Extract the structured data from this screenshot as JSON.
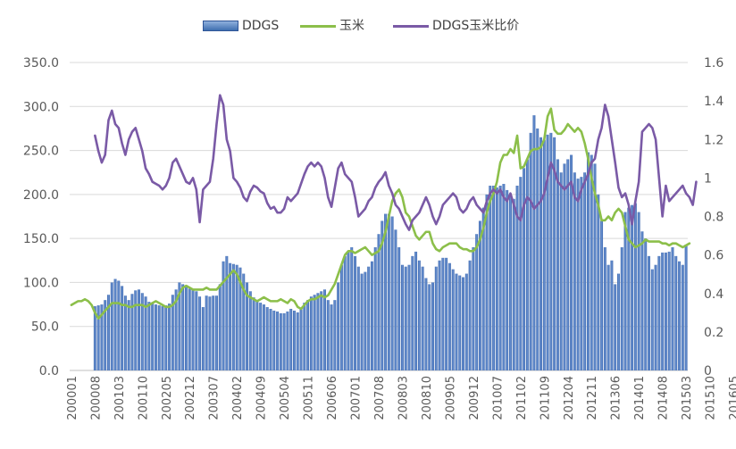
{
  "chart_data": {
    "type": "bar+line",
    "title": "",
    "xlabel": "",
    "ylabel": "",
    "y_left_lim": [
      0,
      350
    ],
    "y_right_lim": [
      0,
      1.6
    ],
    "y_left_ticks": [
      "0.0",
      "50.0",
      "100.0",
      "150.0",
      "200.0",
      "250.0",
      "300.0",
      "350.0"
    ],
    "y_right_ticks": [
      "0",
      "0.2",
      "0.4",
      "0.6",
      "0.8",
      "1",
      "1.2",
      "1.4",
      "1.6"
    ],
    "x_tick_labels": [
      "200001",
      "200008",
      "200103",
      "200110",
      "200205",
      "200212",
      "200307",
      "200402",
      "200409",
      "200504",
      "200511",
      "200606",
      "200701",
      "200708",
      "200803",
      "200810",
      "200905",
      "200912",
      "201007",
      "201102",
      "201109",
      "201204",
      "201211",
      "201306",
      "201401",
      "201408",
      "201503",
      "201510",
      "201605"
    ],
    "grid": "horizontal",
    "legend_position": "top",
    "colors": {
      "ddgs": "#4472c4",
      "corn": "#8cbf4a",
      "ratio": "#7a5aa6"
    },
    "series": [
      {
        "name": "DDGS",
        "type": "bar",
        "axis": "left",
        "values": [
          null,
          null,
          null,
          null,
          null,
          null,
          null,
          73,
          74,
          75,
          80,
          86,
          100,
          104,
          102,
          96,
          85,
          80,
          87,
          91,
          92,
          88,
          84,
          78,
          76,
          75,
          74,
          73,
          74,
          76,
          86,
          92,
          100,
          98,
          95,
          93,
          92,
          90,
          84,
          72,
          85,
          84,
          85,
          85,
          98,
          124,
          130,
          122,
          121,
          120,
          117,
          110,
          100,
          90,
          83,
          80,
          77,
          75,
          72,
          70,
          68,
          67,
          65,
          65,
          67,
          70,
          68,
          66,
          70,
          77,
          80,
          84,
          86,
          88,
          90,
          92,
          80,
          75,
          80,
          100,
          120,
          130,
          136,
          140,
          130,
          118,
          110,
          112,
          118,
          124,
          140,
          155,
          170,
          178,
          178,
          175,
          160,
          140,
          120,
          118,
          120,
          130,
          135,
          125,
          118,
          105,
          98,
          100,
          118,
          125,
          128,
          128,
          122,
          115,
          110,
          108,
          106,
          110,
          125,
          140,
          155,
          170,
          185,
          200,
          210,
          210,
          208,
          210,
          212,
          205,
          200,
          195,
          210,
          220,
          230,
          240,
          270,
          290,
          275,
          265,
          262,
          268,
          270,
          265,
          240,
          225,
          235,
          240,
          245,
          225,
          218,
          220,
          225,
          248,
          245,
          235,
          200,
          170,
          140,
          120,
          125,
          98,
          110,
          140,
          180,
          185,
          188,
          190,
          180,
          158,
          150,
          130,
          115,
          120,
          130,
          134,
          134,
          135,
          140,
          130,
          124,
          120,
          143
        ]
      },
      {
        "name": "玉米",
        "type": "line",
        "axis": "right",
        "values": [
          0.34,
          0.35,
          0.36,
          0.36,
          0.37,
          0.36,
          0.34,
          0.3,
          0.27,
          0.29,
          0.31,
          0.33,
          0.35,
          0.35,
          0.35,
          0.34,
          0.34,
          0.33,
          0.33,
          0.34,
          0.34,
          0.34,
          0.33,
          0.34,
          0.35,
          0.36,
          0.35,
          0.34,
          0.33,
          0.33,
          0.34,
          0.36,
          0.4,
          0.43,
          0.44,
          0.43,
          0.42,
          0.42,
          0.42,
          0.42,
          0.43,
          0.42,
          0.42,
          0.42,
          0.44,
          0.46,
          0.48,
          0.5,
          0.52,
          0.5,
          0.46,
          0.42,
          0.39,
          0.38,
          0.37,
          0.36,
          0.37,
          0.38,
          0.37,
          0.36,
          0.36,
          0.36,
          0.37,
          0.36,
          0.35,
          0.37,
          0.36,
          0.33,
          0.32,
          0.34,
          0.36,
          0.37,
          0.37,
          0.38,
          0.39,
          0.38,
          0.39,
          0.42,
          0.45,
          0.5,
          0.55,
          0.6,
          0.62,
          0.62,
          0.61,
          0.62,
          0.63,
          0.64,
          0.62,
          0.6,
          0.61,
          0.62,
          0.66,
          0.72,
          0.8,
          0.88,
          0.92,
          0.94,
          0.9,
          0.82,
          0.8,
          0.75,
          0.7,
          0.68,
          0.7,
          0.72,
          0.72,
          0.66,
          0.63,
          0.62,
          0.64,
          0.65,
          0.66,
          0.66,
          0.66,
          0.64,
          0.63,
          0.63,
          0.62,
          0.62,
          0.64,
          0.68,
          0.74,
          0.82,
          0.88,
          0.92,
          0.98,
          1.08,
          1.12,
          1.12,
          1.15,
          1.13,
          1.22,
          1.05,
          1.06,
          1.1,
          1.14,
          1.15,
          1.15,
          1.16,
          1.2,
          1.32,
          1.36,
          1.25,
          1.23,
          1.23,
          1.25,
          1.28,
          1.26,
          1.24,
          1.26,
          1.24,
          1.18,
          1.1,
          1.0,
          0.92,
          0.86,
          0.78,
          0.78,
          0.8,
          0.78,
          0.82,
          0.84,
          0.82,
          0.75,
          0.68,
          0.66,
          0.64,
          0.65,
          0.66,
          0.68,
          0.67,
          0.67,
          0.67,
          0.67,
          0.66,
          0.66,
          0.65,
          0.66,
          0.66,
          0.65,
          0.64,
          0.65,
          0.66
        ]
      },
      {
        "name": "DDGS玉米比价",
        "type": "line",
        "axis": "right",
        "values": [
          null,
          null,
          null,
          null,
          null,
          null,
          null,
          1.22,
          1.14,
          1.08,
          1.12,
          1.3,
          1.35,
          1.28,
          1.26,
          1.18,
          1.12,
          1.2,
          1.24,
          1.26,
          1.2,
          1.14,
          1.05,
          1.02,
          0.98,
          0.97,
          0.96,
          0.94,
          0.96,
          1.0,
          1.08,
          1.1,
          1.06,
          1.02,
          0.98,
          0.97,
          1.0,
          0.94,
          0.77,
          0.94,
          0.96,
          0.98,
          1.1,
          1.28,
          1.43,
          1.38,
          1.2,
          1.14,
          1.0,
          0.98,
          0.95,
          0.9,
          0.88,
          0.93,
          0.96,
          0.95,
          0.93,
          0.92,
          0.87,
          0.84,
          0.85,
          0.82,
          0.82,
          0.84,
          0.9,
          0.88,
          0.9,
          0.92,
          0.97,
          1.02,
          1.06,
          1.08,
          1.06,
          1.08,
          1.06,
          1.0,
          0.9,
          0.85,
          0.95,
          1.05,
          1.08,
          1.02,
          1.0,
          0.98,
          0.9,
          0.8,
          0.82,
          0.84,
          0.88,
          0.9,
          0.95,
          0.98,
          1.0,
          1.03,
          0.96,
          0.92,
          0.86,
          0.84,
          0.8,
          0.76,
          0.73,
          0.78,
          0.8,
          0.82,
          0.86,
          0.9,
          0.86,
          0.8,
          0.76,
          0.8,
          0.86,
          0.88,
          0.9,
          0.92,
          0.9,
          0.84,
          0.82,
          0.84,
          0.88,
          0.9,
          0.86,
          0.84,
          0.82,
          0.88,
          0.92,
          0.94,
          0.92,
          0.94,
          0.9,
          0.88,
          0.92,
          0.86,
          0.8,
          0.78,
          0.86,
          0.9,
          0.88,
          0.84,
          0.86,
          0.88,
          0.92,
          1.0,
          1.08,
          1.04,
          0.98,
          0.96,
          0.94,
          0.96,
          0.98,
          0.9,
          0.88,
          0.94,
          0.98,
          1.02,
          1.08,
          1.1,
          1.2,
          1.26,
          1.38,
          1.32,
          1.2,
          1.08,
          0.95,
          0.9,
          0.92,
          0.86,
          0.76,
          0.88,
          0.98,
          1.24,
          1.26,
          1.28,
          1.26,
          1.2,
          1.0,
          0.8,
          0.96,
          0.88,
          0.9,
          0.92,
          0.94,
          0.96,
          0.92,
          0.9,
          0.86,
          0.98
        ]
      }
    ]
  }
}
